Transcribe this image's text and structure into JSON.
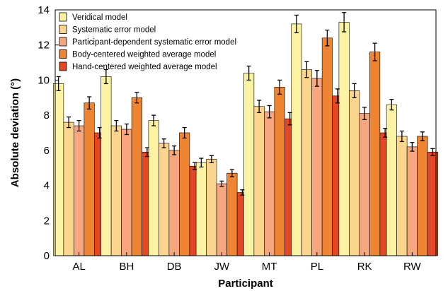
{
  "chart_data": {
    "type": "bar",
    "xlabel": "Participant",
    "ylabel": "Absolute deviation (°)",
    "ylim": [
      0,
      14
    ],
    "yticks": [
      0,
      2,
      4,
      6,
      8,
      10,
      12,
      14
    ],
    "grid": false,
    "legend_position": "top-left",
    "categories": [
      "AL",
      "BH",
      "DB",
      "JW",
      "MT",
      "PL",
      "RK",
      "RW"
    ],
    "series": [
      {
        "name": "Veridical model",
        "color": "#fbf3a3",
        "values": [
          9.8,
          10.2,
          7.7,
          5.3,
          10.4,
          13.2,
          13.3,
          8.6
        ],
        "errors": [
          0.4,
          0.4,
          0.3,
          0.25,
          0.4,
          0.5,
          0.55,
          0.3
        ]
      },
      {
        "name": "Systematic error model",
        "color": "#fbd58e",
        "values": [
          7.6,
          7.4,
          6.4,
          5.5,
          8.5,
          10.6,
          9.4,
          6.8
        ],
        "errors": [
          0.3,
          0.3,
          0.25,
          0.2,
          0.35,
          0.45,
          0.4,
          0.3
        ]
      },
      {
        "name": "Participant-dependent systematic error model",
        "color": "#f7a77f",
        "values": [
          7.4,
          7.2,
          6.0,
          4.1,
          8.2,
          10.1,
          8.1,
          6.2
        ],
        "errors": [
          0.3,
          0.3,
          0.25,
          0.15,
          0.35,
          0.45,
          0.35,
          0.25
        ]
      },
      {
        "name": "Body-centered weighted average model",
        "color": "#ef8532",
        "values": [
          8.7,
          9.0,
          7.0,
          4.7,
          9.6,
          12.4,
          11.6,
          6.8
        ],
        "errors": [
          0.35,
          0.3,
          0.3,
          0.2,
          0.4,
          0.45,
          0.5,
          0.25
        ]
      },
      {
        "name": "Hand-centered weighted average model",
        "color": "#e34724",
        "values": [
          7.0,
          5.9,
          5.1,
          3.6,
          7.8,
          9.1,
          7.0,
          5.9
        ],
        "errors": [
          0.3,
          0.25,
          0.2,
          0.15,
          0.35,
          0.4,
          0.25,
          0.2
        ]
      }
    ]
  }
}
